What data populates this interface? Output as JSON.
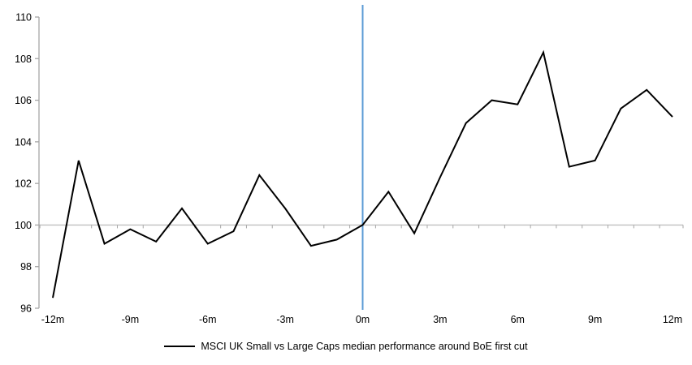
{
  "chart_data": {
    "type": "line",
    "title": "",
    "legend": "MSCI UK Small vs Large Caps median performance around BoE first cut",
    "legend_position": "bottom-center",
    "x": [
      -12,
      -11,
      -10,
      -9,
      -8,
      -7,
      -6,
      -5,
      -4,
      -3,
      -2,
      -1,
      0,
      1,
      2,
      3,
      4,
      5,
      6,
      7,
      8,
      9,
      10,
      11,
      12
    ],
    "series": [
      {
        "name": "MSCI UK Small vs Large Caps median performance around BoE first cut",
        "color": "#000000",
        "values": [
          96.5,
          103.1,
          99.1,
          99.8,
          99.2,
          100.8,
          99.1,
          99.7,
          102.4,
          100.8,
          99.0,
          99.3,
          100.0,
          101.6,
          99.6,
          102.3,
          104.9,
          106.0,
          105.8,
          108.3,
          102.8,
          103.1,
          105.6,
          106.5,
          105.2
        ]
      }
    ],
    "xlim": [
      -12,
      12
    ],
    "ylim": [
      96,
      110
    ],
    "x_tick_values": [
      -12,
      -9,
      -6,
      -3,
      0,
      3,
      6,
      9,
      12
    ],
    "x_tick_labels": [
      "-12m",
      "-9m",
      "-6m",
      "-3m",
      "0m",
      "3m",
      "6m",
      "9m",
      "12m"
    ],
    "y_tick_values": [
      96,
      98,
      100,
      102,
      104,
      106,
      108,
      110
    ],
    "baseline_value": 100,
    "event_line_x": 0,
    "grid": "off",
    "colors": {
      "series_line": "#000000",
      "event_line": "#5b9bd5",
      "baseline": "#c0c0c0",
      "axis": "#a6a6a6",
      "tick_label": "#000000"
    }
  }
}
